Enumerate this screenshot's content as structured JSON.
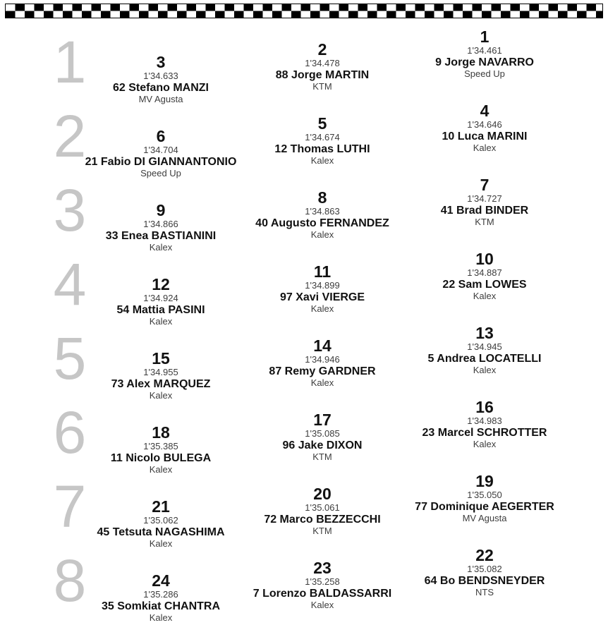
{
  "colors": {
    "row_number_gray": "#c6c6c6",
    "text_black": "#111111",
    "text_gray": "#3d3d3d",
    "banner_black": "#000000",
    "banner_white": "#ffffff"
  },
  "banner": {
    "type": "checkered-flag-strip"
  },
  "grid": {
    "rows": [
      {
        "row_number": "1",
        "entries": [
          {
            "position": "1",
            "time": "1'34.461",
            "rider": "9 Jorge NAVARRO",
            "team": "Speed Up"
          },
          {
            "position": "2",
            "time": "1'34.478",
            "rider": "88 Jorge MARTIN",
            "team": "KTM"
          },
          {
            "position": "3",
            "time": "1'34.633",
            "rider": "62 Stefano MANZI",
            "team": "MV Agusta"
          }
        ]
      },
      {
        "row_number": "2",
        "entries": [
          {
            "position": "4",
            "time": "1'34.646",
            "rider": "10 Luca MARINI",
            "team": "Kalex"
          },
          {
            "position": "5",
            "time": "1'34.674",
            "rider": "12 Thomas LUTHI",
            "team": "Kalex"
          },
          {
            "position": "6",
            "time": "1'34.704",
            "rider": "21 Fabio DI GIANNANTONIO",
            "team": "Speed Up"
          }
        ]
      },
      {
        "row_number": "3",
        "entries": [
          {
            "position": "7",
            "time": "1'34.727",
            "rider": "41 Brad BINDER",
            "team": "KTM"
          },
          {
            "position": "8",
            "time": "1'34.863",
            "rider": "40 Augusto FERNANDEZ",
            "team": "Kalex"
          },
          {
            "position": "9",
            "time": "1'34.866",
            "rider": "33 Enea BASTIANINI",
            "team": "Kalex"
          }
        ]
      },
      {
        "row_number": "4",
        "entries": [
          {
            "position": "10",
            "time": "1'34.887",
            "rider": "22 Sam LOWES",
            "team": "Kalex"
          },
          {
            "position": "11",
            "time": "1'34.899",
            "rider": "97 Xavi VIERGE",
            "team": "Kalex"
          },
          {
            "position": "12",
            "time": "1'34.924",
            "rider": "54 Mattia PASINI",
            "team": "Kalex"
          }
        ]
      },
      {
        "row_number": "5",
        "entries": [
          {
            "position": "13",
            "time": "1'34.945",
            "rider": "5 Andrea LOCATELLI",
            "team": "Kalex"
          },
          {
            "position": "14",
            "time": "1'34.946",
            "rider": "87 Remy GARDNER",
            "team": "Kalex"
          },
          {
            "position": "15",
            "time": "1'34.955",
            "rider": "73 Alex MARQUEZ",
            "team": "Kalex"
          }
        ]
      },
      {
        "row_number": "6",
        "entries": [
          {
            "position": "16",
            "time": "1'34.983",
            "rider": "23 Marcel SCHROTTER",
            "team": "Kalex"
          },
          {
            "position": "17",
            "time": "1'35.085",
            "rider": "96 Jake DIXON",
            "team": "KTM"
          },
          {
            "position": "18",
            "time": "1'35.385",
            "rider": "11 Nicolo BULEGA",
            "team": "Kalex"
          }
        ]
      },
      {
        "row_number": "7",
        "entries": [
          {
            "position": "19",
            "time": "1'35.050",
            "rider": "77 Dominique AEGERTER",
            "team": "MV Agusta"
          },
          {
            "position": "20",
            "time": "1'35.061",
            "rider": "72 Marco BEZZECCHI",
            "team": "KTM"
          },
          {
            "position": "21",
            "time": "1'35.062",
            "rider": "45 Tetsuta NAGASHIMA",
            "team": "Kalex"
          }
        ]
      },
      {
        "row_number": "8",
        "entries": [
          {
            "position": "22",
            "time": "1'35.082",
            "rider": "64 Bo BENDSNEYDER",
            "team": "NTS"
          },
          {
            "position": "23",
            "time": "1'35.258",
            "rider": "7 Lorenzo BALDASSARRI",
            "team": "Kalex"
          },
          {
            "position": "24",
            "time": "1'35.286",
            "rider": "35 Somkiat CHANTRA",
            "team": "Kalex"
          }
        ]
      }
    ]
  }
}
